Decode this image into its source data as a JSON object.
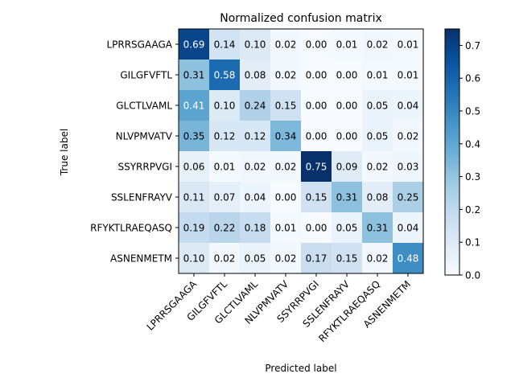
{
  "chart_data": {
    "type": "heatmap",
    "title": "Normalized confusion matrix",
    "xlabel": "Predicted label",
    "ylabel": "True label",
    "x_categories": [
      "LPRRSGAAGA",
      "GILGFVFTL",
      "GLCTLVAML",
      "NLVPMVATV",
      "SSYRRPVGI",
      "SSLENFRAYV",
      "RFYKTLRAEQASQ",
      "ASNENMETM"
    ],
    "y_categories": [
      "LPRRSGAAGA",
      "GILGFVFTL",
      "GLCTLVAML",
      "NLVPMVATV",
      "SSYRRPVGI",
      "SSLENFRAYV",
      "RFYKTLRAEQASQ",
      "ASNENMETM"
    ],
    "values": [
      [
        0.69,
        0.14,
        0.1,
        0.02,
        0.0,
        0.01,
        0.02,
        0.01
      ],
      [
        0.31,
        0.58,
        0.08,
        0.02,
        0.0,
        0.0,
        0.01,
        0.01
      ],
      [
        0.41,
        0.1,
        0.24,
        0.15,
        0.0,
        0.0,
        0.05,
        0.04
      ],
      [
        0.35,
        0.12,
        0.12,
        0.34,
        0.0,
        0.0,
        0.05,
        0.02
      ],
      [
        0.06,
        0.01,
        0.02,
        0.02,
        0.75,
        0.09,
        0.02,
        0.03
      ],
      [
        0.11,
        0.07,
        0.04,
        0.0,
        0.15,
        0.31,
        0.08,
        0.25
      ],
      [
        0.19,
        0.22,
        0.18,
        0.01,
        0.0,
        0.05,
        0.31,
        0.04
      ],
      [
        0.1,
        0.02,
        0.05,
        0.02,
        0.17,
        0.15,
        0.02,
        0.48
      ]
    ],
    "value_format": "2 decimals",
    "colormap": "Blues",
    "vmin": 0.0,
    "vmax": 0.75,
    "colorbar_ticks": [
      "0.0",
      "0.1",
      "0.2",
      "0.3",
      "0.4",
      "0.5",
      "0.6",
      "0.7"
    ],
    "grid": false,
    "legend": "colorbar at right"
  }
}
